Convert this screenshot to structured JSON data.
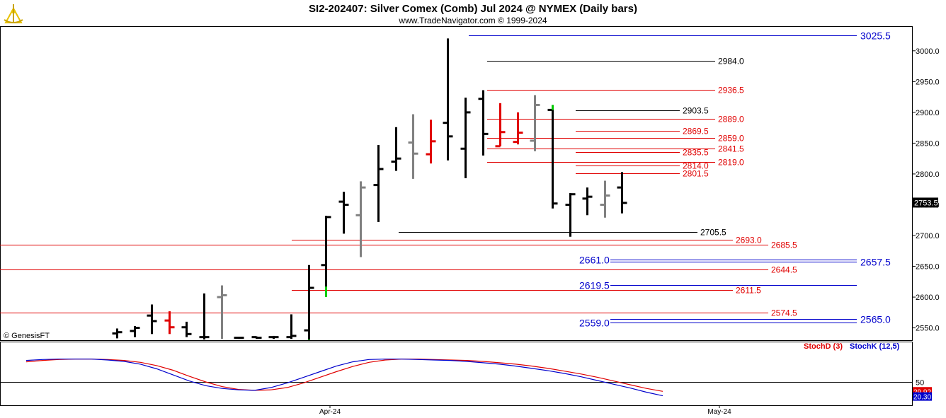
{
  "header": {
    "title": "SI2-202407:  Silver Comex (Comb) Jul 2024 @ NYMEX  (Daily bars)",
    "subtitle": "www.TradeNavigator.com © 1999-2024",
    "watermark": "© GenesisFT"
  },
  "chart_data": [
    {
      "type": "ohlc",
      "price_axis": {
        "min": 2530,
        "max": 3040,
        "ticks": [
          "3000.0",
          "2950.0",
          "2900.0",
          "2850.0",
          "2800.0",
          "2750.0",
          "2700.0",
          "2650.0",
          "2600.0",
          "2550.0"
        ]
      },
      "last_price": "2753.5",
      "time_axis": {
        "labels": [
          "Apr-24",
          "May-24"
        ]
      },
      "bar_colors": {
        "up": "#000000",
        "down": "#000000",
        "neutral": "#808080",
        "red": "#e00000",
        "green": "#00cc00"
      },
      "bars": [
        {
          "o": 2541,
          "h": 2549,
          "l": 2533,
          "c": 2543,
          "col": "#000000"
        },
        {
          "o": 2545,
          "h": 2553,
          "l": 2535,
          "c": 2550,
          "col": "#000000"
        },
        {
          "o": 2570,
          "h": 2588,
          "l": 2540,
          "c": 2561,
          "col": "#000000"
        },
        {
          "o": 2562,
          "h": 2577,
          "l": 2540,
          "c": 2551,
          "col": "#e00000"
        },
        {
          "o": 2551,
          "h": 2560,
          "l": 2535,
          "c": 2540,
          "col": "#000000"
        },
        {
          "o": 2535,
          "h": 2606,
          "l": 2530,
          "c": 2535,
          "col": "#000000"
        },
        {
          "o": 2600,
          "h": 2619,
          "l": 2532,
          "c": 2603,
          "col": "#808080"
        },
        {
          "o": 2534,
          "h": 2534,
          "l": 2532,
          "c": 2534,
          "col": "#000000"
        },
        {
          "o": 2535,
          "h": 2536,
          "l": 2532,
          "c": 2534,
          "col": "#000000"
        },
        {
          "o": 2535,
          "h": 2537,
          "l": 2532,
          "c": 2535,
          "col": "#000000"
        },
        {
          "o": 2535,
          "h": 2572,
          "l": 2532,
          "c": 2537,
          "col": "#000000"
        },
        {
          "o": 2546,
          "h": 2652,
          "l": 2530,
          "c": 2615,
          "col": "#000000"
        },
        {
          "o": 2652,
          "h": 2732,
          "l": 2617,
          "c": 2730,
          "col": "#000000"
        },
        {
          "o": 2755,
          "h": 2771,
          "l": 2703,
          "c": 2750,
          "col": "#000000"
        },
        {
          "o": 2733,
          "h": 2788,
          "l": 2665,
          "c": 2778,
          "col": "#808080"
        },
        {
          "o": 2782,
          "h": 2847,
          "l": 2722,
          "c": 2808,
          "col": "#000000"
        },
        {
          "o": 2820,
          "h": 2876,
          "l": 2805,
          "c": 2825,
          "col": "#000000"
        },
        {
          "o": 2851,
          "h": 2897,
          "l": 2792,
          "c": 2833,
          "col": "#808080"
        },
        {
          "o": 2832,
          "h": 2888,
          "l": 2817,
          "c": 2853,
          "col": "#e00000"
        },
        {
          "o": 2883,
          "h": 3020,
          "l": 2822,
          "c": 2861,
          "col": "#000000"
        },
        {
          "o": 2841,
          "h": 2924,
          "l": 2793,
          "c": 2900,
          "col": "#000000"
        },
        {
          "o": 2922,
          "h": 2936,
          "l": 2830,
          "c": 2865,
          "col": "#000000"
        },
        {
          "o": 2845,
          "h": 2915,
          "l": 2845,
          "c": 2868,
          "col": "#e00000"
        },
        {
          "o": 2852,
          "h": 2900,
          "l": 2848,
          "c": 2867,
          "col": "#e00000"
        },
        {
          "o": 2854,
          "h": 2928,
          "l": 2837,
          "c": 2912,
          "col": "#808080"
        },
        {
          "o": 2904,
          "h": 2912,
          "l": 2744,
          "c": 2752,
          "col": "#000000"
        },
        {
          "o": 2750,
          "h": 2769,
          "l": 2698,
          "c": 2767,
          "col": "#000000"
        },
        {
          "o": 2760,
          "h": 2778,
          "l": 2733,
          "c": 2763,
          "col": "#000000"
        },
        {
          "o": 2750,
          "h": 2789,
          "l": 2729,
          "c": 2765,
          "col": "#808080"
        },
        {
          "o": 2778,
          "h": 2803,
          "l": 2736,
          "c": 2753,
          "col": "#000000"
        }
      ],
      "levels": [
        {
          "price": 3025.5,
          "label": "3025.5",
          "color": "#0000cc"
        },
        {
          "price": 2984.0,
          "label": "2984.0",
          "color": "#000000"
        },
        {
          "price": 2936.5,
          "label": "2936.5",
          "color": "#e00000"
        },
        {
          "price": 2903.5,
          "label": "2903.5",
          "color": "#000000"
        },
        {
          "price": 2889.0,
          "label": "2889.0",
          "color": "#e00000"
        },
        {
          "price": 2869.5,
          "label": "2869.5",
          "color": "#e00000"
        },
        {
          "price": 2859.0,
          "label": "2859.0",
          "color": "#e00000"
        },
        {
          "price": 2841.5,
          "label": "2841.5",
          "color": "#e00000"
        },
        {
          "price": 2835.5,
          "label": "2835.5",
          "color": "#e00000"
        },
        {
          "price": 2819.0,
          "label": "2819.0",
          "color": "#e00000"
        },
        {
          "price": 2814.0,
          "label": "2814.0",
          "color": "#e00000"
        },
        {
          "price": 2801.5,
          "label": "2801.5",
          "color": "#e00000"
        },
        {
          "price": 2705.5,
          "label": "2705.5",
          "color": "#000000"
        },
        {
          "price": 2693.0,
          "label": "2693.0",
          "color": "#e00000"
        },
        {
          "price": 2685.5,
          "label": "2685.5",
          "color": "#e00000"
        },
        {
          "price": 2661.0,
          "label": "2661.0",
          "color": "#0000cc"
        },
        {
          "price": 2657.5,
          "label": "2657.5",
          "color": "#0000cc"
        },
        {
          "price": 2644.5,
          "label": "2644.5",
          "color": "#e00000"
        },
        {
          "price": 2619.5,
          "label": "2619.5",
          "color": "#0000cc"
        },
        {
          "price": 2611.5,
          "label": "2611.5",
          "color": "#e00000"
        },
        {
          "price": 2574.5,
          "label": "2574.5",
          "color": "#e00000"
        },
        {
          "price": 2565.0,
          "label": "2565.0",
          "color": "#0000cc"
        },
        {
          "price": 2559.0,
          "label": "2559.0",
          "color": "#0000cc"
        }
      ]
    },
    {
      "type": "line",
      "series": [
        {
          "name": "StochD (3)",
          "color": "#e00000",
          "values": [
            93,
            96,
            98,
            99,
            99,
            98,
            96,
            92,
            85,
            75,
            62,
            50,
            40,
            34,
            32,
            33,
            38,
            48,
            60,
            72,
            83,
            92,
            97,
            99,
            99,
            98,
            97,
            96,
            94,
            91,
            88,
            84,
            79,
            73,
            67,
            60,
            52,
            44,
            36,
            29.92
          ]
        },
        {
          "name": "StochK (12,5)",
          "color": "#0000cc",
          "values": [
            96,
            98,
            99,
            99,
            99,
            97,
            94,
            88,
            78,
            65,
            52,
            42,
            36,
            33,
            32,
            38,
            48,
            60,
            72,
            84,
            93,
            98,
            99,
            99,
            98,
            97,
            96,
            94,
            91,
            88,
            84,
            79,
            74,
            68,
            61,
            53,
            45,
            37,
            28,
            20.3
          ]
        }
      ],
      "ylim": [
        0,
        100
      ],
      "gridline": "50",
      "last_values": {
        "stoch_d": "29.92",
        "stoch_k": "20.30"
      }
    }
  ]
}
